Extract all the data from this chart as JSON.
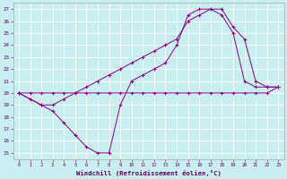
{
  "title": "",
  "xlabel": "Windchill (Refroidissement éolien,°C)",
  "ylabel": "",
  "bg_color": "#c8eef0",
  "line_color": "#880088",
  "grid_color": "#aadddd",
  "xlim": [
    -0.5,
    23.5
  ],
  "ylim": [
    14.5,
    27.5
  ],
  "yticks": [
    15,
    16,
    17,
    18,
    19,
    20,
    21,
    22,
    23,
    24,
    25,
    26,
    27
  ],
  "xticks": [
    0,
    1,
    2,
    3,
    4,
    5,
    6,
    7,
    8,
    9,
    10,
    11,
    12,
    13,
    14,
    15,
    16,
    17,
    18,
    19,
    20,
    21,
    22,
    23
  ],
  "line1_x": [
    0,
    1,
    2,
    3,
    4,
    5,
    6,
    7,
    8,
    9,
    10,
    11,
    12,
    13,
    14,
    15,
    16,
    17,
    18,
    19,
    20,
    21,
    22,
    23
  ],
  "line1_y": [
    20.0,
    20.0,
    20.0,
    20.0,
    20.0,
    20.0,
    20.0,
    20.0,
    20.0,
    20.0,
    20.0,
    20.0,
    20.0,
    20.0,
    20.0,
    20.0,
    20.0,
    20.0,
    20.0,
    20.0,
    20.0,
    20.0,
    20.0,
    20.5
  ],
  "line2_x": [
    0,
    1,
    2,
    3,
    4,
    5,
    6,
    7,
    8,
    9,
    10,
    11,
    12,
    13,
    14,
    15,
    16,
    17,
    18,
    19,
    20,
    21,
    22,
    23
  ],
  "line2_y": [
    20.0,
    19.5,
    19.0,
    18.5,
    17.5,
    16.5,
    15.5,
    15.0,
    15.0,
    19.0,
    21.0,
    21.5,
    22.0,
    22.5,
    24.0,
    26.5,
    27.0,
    27.0,
    27.0,
    25.5,
    24.5,
    21.0,
    20.5,
    20.5
  ],
  "line3_x": [
    0,
    2,
    3,
    4,
    5,
    6,
    7,
    8,
    9,
    10,
    11,
    12,
    13,
    14,
    15,
    16,
    17,
    18,
    19,
    20,
    21,
    22,
    23
  ],
  "line3_y": [
    20.0,
    19.0,
    19.0,
    19.5,
    20.0,
    20.5,
    21.0,
    21.5,
    22.0,
    22.5,
    23.0,
    23.5,
    24.0,
    24.5,
    26.0,
    26.5,
    27.0,
    26.5,
    25.0,
    21.0,
    20.5,
    20.5,
    20.5
  ]
}
